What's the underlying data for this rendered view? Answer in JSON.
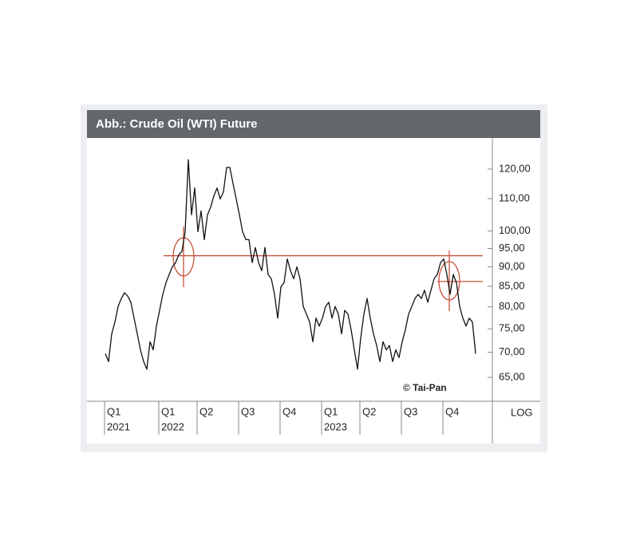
{
  "chart_data": {
    "type": "line",
    "title": "Abb.: Crude Oil (WTI) Future",
    "source": "© Tai-Pan",
    "scale_label": "LOG",
    "log_scale": true,
    "color": "#111111",
    "categories": [
      "Q1",
      null,
      null,
      null,
      null,
      null,
      null,
      null,
      null,
      null,
      null,
      null,
      null,
      null,
      null,
      null,
      null,
      "Q1",
      null,
      null,
      null,
      null,
      null,
      null,
      null,
      null,
      null,
      null,
      null,
      "Q2",
      null,
      null,
      null,
      null,
      null,
      null,
      null,
      null,
      null,
      null,
      null,
      null,
      "Q3",
      null,
      null,
      null,
      null,
      null,
      null,
      null,
      null,
      null,
      null,
      null,
      null,
      "Q4",
      null,
      null,
      null,
      null,
      null,
      null,
      null,
      null,
      null,
      null,
      null,
      null,
      "Q1",
      null,
      null,
      null,
      null,
      null,
      null,
      null,
      null,
      null,
      null,
      null,
      "Q2",
      null,
      null,
      null,
      null,
      null,
      null,
      null,
      null,
      null,
      null,
      null,
      null,
      "Q3",
      null,
      null,
      null,
      null,
      null,
      null,
      null,
      null,
      null,
      null,
      null,
      null,
      "Q4",
      null,
      null,
      null,
      null,
      null,
      null,
      null,
      null,
      null,
      null
    ],
    "years": [
      "2021",
      null,
      null,
      null,
      null,
      null,
      null,
      null,
      null,
      null,
      null,
      null,
      null,
      null,
      null,
      null,
      null,
      "2022",
      null,
      null,
      null,
      null,
      null,
      null,
      null,
      null,
      null,
      null,
      null,
      null,
      null,
      null,
      null,
      null,
      null,
      null,
      null,
      null,
      null,
      null,
      null,
      null,
      null,
      null,
      null,
      null,
      null,
      null,
      null,
      null,
      null,
      null,
      null,
      null,
      null,
      null,
      null,
      null,
      null,
      null,
      null,
      null,
      null,
      null,
      null,
      null,
      null,
      null,
      "2023",
      null,
      null,
      null,
      null,
      null,
      null,
      null,
      null,
      null,
      null,
      null,
      null,
      null,
      null,
      null,
      null,
      null,
      null,
      null,
      null,
      null,
      null,
      null,
      null,
      null,
      null,
      null,
      null,
      null,
      null,
      null,
      null,
      null,
      null,
      null,
      null,
      null,
      null,
      null,
      null,
      null,
      null,
      null,
      null,
      null,
      null,
      null,
      null
    ],
    "values": [
      69.7,
      68.1,
      73.9,
      76.5,
      80.1,
      82.0,
      83.4,
      82.6,
      81.1,
      77.4,
      73.9,
      70.5,
      68.1,
      66.6,
      72.2,
      70.5,
      75.6,
      79.2,
      83.0,
      85.9,
      88.0,
      90.0,
      91.1,
      93.2,
      94.2,
      99.8,
      123.4,
      104.9,
      113.5,
      99.8,
      106.1,
      97.5,
      104.9,
      107.3,
      110.9,
      113.5,
      109.9,
      112.2,
      120.6,
      120.6,
      115.0,
      109.9,
      104.9,
      99.8,
      97.5,
      97.5,
      91.1,
      95.3,
      91.1,
      89.0,
      95.3,
      88.0,
      86.9,
      83.0,
      77.4,
      84.9,
      85.9,
      92.1,
      89.0,
      86.9,
      90.0,
      86.9,
      80.1,
      78.3,
      76.5,
      72.2,
      77.4,
      75.6,
      77.4,
      80.1,
      81.1,
      77.4,
      80.1,
      78.3,
      73.9,
      79.2,
      78.3,
      74.8,
      70.5,
      66.6,
      73.0,
      78.3,
      82.0,
      77.4,
      73.9,
      71.4,
      68.1,
      72.2,
      70.5,
      71.4,
      68.1,
      70.5,
      68.9,
      72.2,
      74.8,
      78.3,
      80.1,
      82.0,
      83.0,
      82.0,
      84.0,
      81.1,
      84.0,
      86.9,
      88.0,
      91.1,
      92.1,
      88.0,
      83.0,
      88.0,
      85.9,
      80.1,
      77.4,
      75.6,
      77.4,
      76.5,
      69.7
    ],
    "ylim": [
      60.6,
      131.5
    ],
    "yticks": [
      {
        "value": 65,
        "label": "65,00"
      },
      {
        "value": 70,
        "label": "70,00"
      },
      {
        "value": 75,
        "label": "75,00"
      },
      {
        "value": 80,
        "label": "80,00"
      },
      {
        "value": 85,
        "label": "85,00"
      },
      {
        "value": 90,
        "label": "90,00"
      },
      {
        "value": 95,
        "label": "95,00"
      },
      {
        "value": 100,
        "label": "100,00"
      },
      {
        "value": 110,
        "label": "110,00"
      },
      {
        "value": 120,
        "label": "120,00"
      }
    ],
    "hlines": [
      93.0,
      86.2
    ],
    "hline_color": "#c8503a"
  }
}
